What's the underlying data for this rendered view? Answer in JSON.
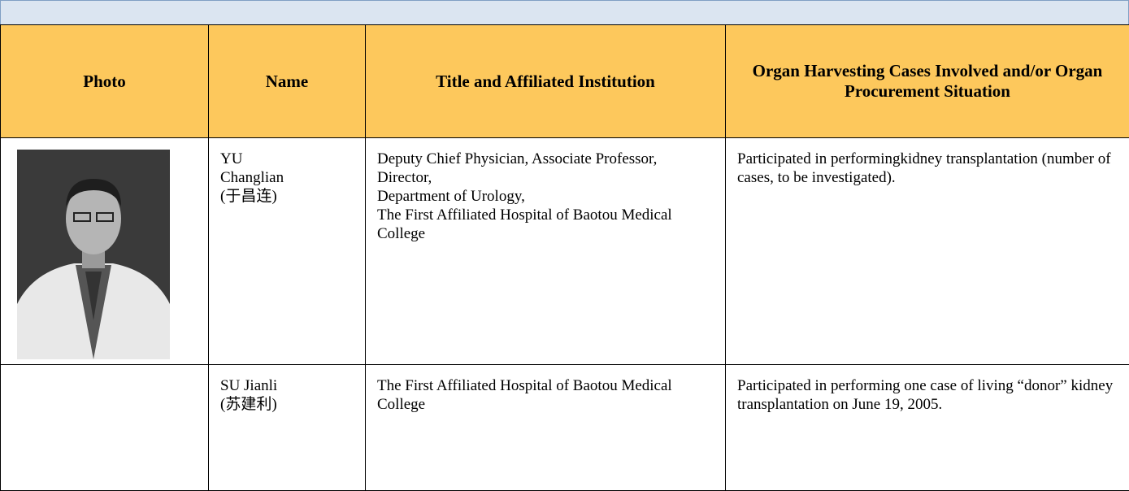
{
  "table": {
    "headers": [
      "Photo",
      "Name",
      "Title and Affiliated Institution",
      "Organ Harvesting Cases Involved and/or Organ Procurement Situation"
    ],
    "rows": [
      {
        "name": [
          "YU",
          "Changlian",
          "(于昌连)"
        ],
        "title": [
          "Deputy Chief Physician, Associate Professor,",
          "Director,",
          "Department of Urology,",
          "The First Affiliated Hospital of Baotou Medical College"
        ],
        "situation": "Participated in performingkidney transplantation (number of cases, to be investigated).",
        "photo": true
      },
      {
        "name": [
          "SU Jianli",
          "(苏建利)"
        ],
        "title": [
          "The First Affiliated Hospital of Baotou Medical College"
        ],
        "situation": "Participated in performing one case of living “donor” kidney transplantation on June 19, 2005.",
        "photo": false
      }
    ]
  }
}
